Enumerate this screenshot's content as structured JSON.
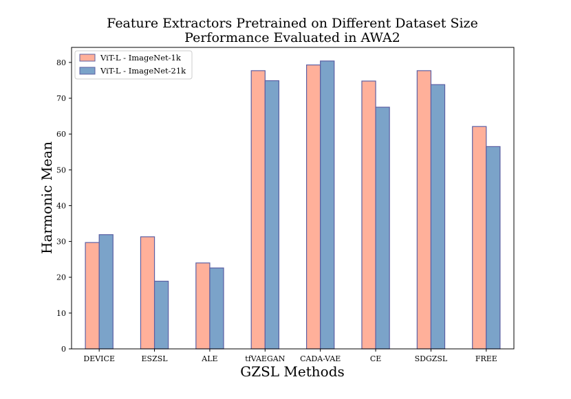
{
  "chart_data": {
    "type": "bar",
    "title": [
      "Feature Extractors Pretrained on Different Dataset Size",
      "Performance Evaluated in AWA2"
    ],
    "xlabel": "GZSL Methods",
    "ylabel": "Harmonic Mean",
    "categories": [
      "DEVICE",
      "ESZSL",
      "ALE",
      "tfVAEGAN",
      "CADA-VAE",
      "CE",
      "SDGZSL",
      "FREE"
    ],
    "series": [
      {
        "name": "ViT-L - ImageNet-1k",
        "color": "#ffb09a",
        "values": [
          29.7,
          31.3,
          24.0,
          77.7,
          79.3,
          74.8,
          77.7,
          62.1
        ]
      },
      {
        "name": "ViT-L - ImageNet-21k",
        "color": "#7ba3c9",
        "values": [
          31.9,
          18.9,
          22.6,
          74.9,
          80.4,
          67.5,
          73.8,
          56.5
        ]
      }
    ],
    "bar_edge_color": "#5b5fa3",
    "ylim": [
      0,
      84.2
    ],
    "yticks": [
      0,
      10,
      20,
      30,
      40,
      50,
      60,
      70,
      80
    ],
    "grid": false,
    "legend_position": "top-left"
  }
}
